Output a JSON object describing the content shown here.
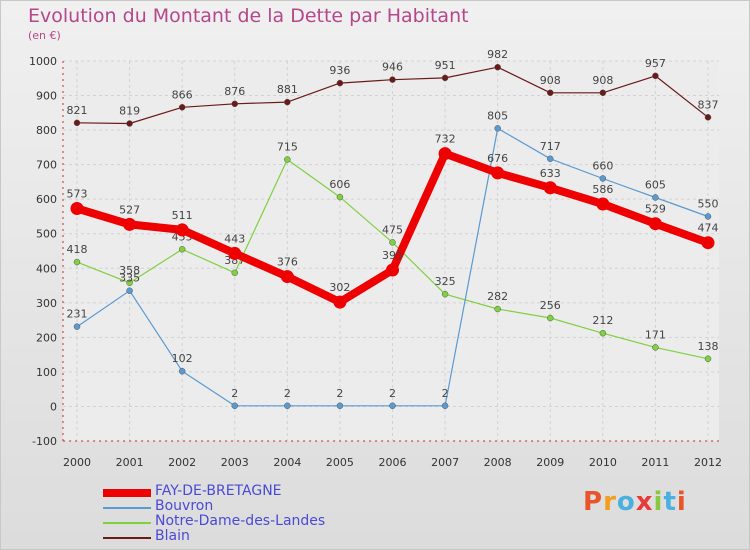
{
  "title": "Evolution du Montant de la Dette par Habitant",
  "subtitle": "(en €)",
  "logo": {
    "text": "Proxiti",
    "colors": [
      "#e8552a",
      "#f0a020",
      "#4ab0e0",
      "#e83a3a",
      "#8ac840",
      "#4ab0e0",
      "#e8552a"
    ]
  },
  "chart_data": {
    "type": "line",
    "title": "Evolution du Montant de la Dette par Habitant",
    "subtitle": "(en €)",
    "xlabel": "",
    "ylabel": "",
    "x": [
      "2000",
      "2001",
      "2002",
      "2003",
      "2004",
      "2005",
      "2006",
      "2007",
      "2008",
      "2009",
      "2010",
      "2011",
      "2012"
    ],
    "ylim": [
      -100,
      1000
    ],
    "yticks": [
      "-100",
      "0",
      "100",
      "200",
      "300",
      "400",
      "500",
      "600",
      "700",
      "800",
      "900",
      "1000"
    ],
    "grid": true,
    "legend": "bottom-left",
    "series": [
      {
        "name": "Blain",
        "color": "#6b1a1a",
        "values": [
          821,
          819,
          866,
          876,
          881,
          936,
          946,
          951,
          982,
          908,
          908,
          957,
          837
        ]
      },
      {
        "name": "Notre-Dame-des-Landes",
        "color": "#80d040",
        "values": [
          418,
          358,
          455,
          387,
          715,
          606,
          475,
          325,
          282,
          256,
          212,
          171,
          138
        ]
      },
      {
        "name": "Bouvron",
        "color": "#5a9ad0",
        "values": [
          231,
          335,
          102,
          2,
          2,
          2,
          2,
          2,
          805,
          717,
          660,
          605,
          550
        ]
      },
      {
        "name": "FAY-DE-BRETAGNE",
        "color": "#ee0000",
        "values": [
          573,
          527,
          511,
          443,
          376,
          302,
          395,
          732,
          676,
          633,
          586,
          529,
          474
        ]
      }
    ]
  }
}
